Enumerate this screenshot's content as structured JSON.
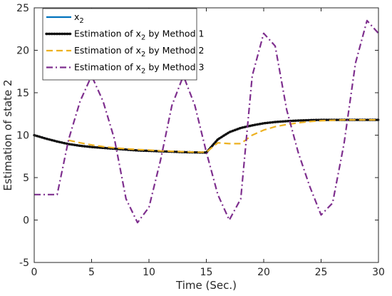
{
  "chart_data": {
    "type": "line",
    "title": "",
    "xlabel": "Time (Sec.)",
    "ylabel": "Estimation of state 2",
    "xlim": [
      0,
      30
    ],
    "ylim": [
      -5,
      25
    ],
    "xticks": [
      0,
      5,
      10,
      15,
      20,
      25,
      30
    ],
    "yticks": [
      -5,
      0,
      5,
      10,
      15,
      20,
      25
    ],
    "grid": false,
    "legend_position": "top-left",
    "series": [
      {
        "name": "x",
        "name_sub": "2",
        "color": "#0072BD",
        "style": "solid",
        "x": [
          0,
          1,
          2,
          3,
          4,
          5,
          6,
          7,
          8,
          9,
          10,
          11,
          12,
          13,
          14,
          15,
          16,
          17,
          18,
          19,
          20,
          21,
          22,
          23,
          24,
          25,
          26,
          27,
          28,
          29,
          30
        ],
        "y": [
          10.0,
          9.6,
          9.25,
          8.95,
          8.75,
          8.6,
          8.5,
          8.4,
          8.3,
          8.2,
          8.15,
          8.1,
          8.05,
          8.0,
          7.97,
          7.95,
          9.5,
          10.35,
          10.85,
          11.15,
          11.4,
          11.55,
          11.65,
          11.72,
          11.77,
          11.8,
          11.8,
          11.8,
          11.8,
          11.8,
          11.8
        ]
      },
      {
        "name": "Estimation of x",
        "name_sub": "2",
        "name_suffix": " by Method 1",
        "color": "#111111",
        "style": "dotted",
        "x": [
          0,
          1,
          2,
          3,
          4,
          5,
          6,
          7,
          8,
          9,
          10,
          11,
          12,
          13,
          14,
          15,
          16,
          17,
          18,
          19,
          20,
          21,
          22,
          23,
          24,
          25,
          26,
          27,
          28,
          29,
          30
        ],
        "y": [
          10.0,
          9.6,
          9.25,
          8.95,
          8.75,
          8.6,
          8.5,
          8.4,
          8.3,
          8.2,
          8.15,
          8.1,
          8.05,
          8.0,
          7.97,
          7.95,
          9.5,
          10.35,
          10.85,
          11.15,
          11.4,
          11.55,
          11.65,
          11.72,
          11.77,
          11.8,
          11.8,
          11.8,
          11.8,
          11.8,
          11.8
        ]
      },
      {
        "name": "Estimation of x",
        "name_sub": "2",
        "name_suffix": " by Method 2",
        "color": "#EDB120",
        "style": "dashed",
        "x": [
          3,
          4,
          5,
          6,
          7,
          8,
          9,
          10,
          11,
          12,
          13,
          14,
          15,
          16,
          17,
          18,
          19,
          20,
          21,
          22,
          23,
          24,
          25,
          26,
          27,
          28,
          29,
          30
        ],
        "y": [
          9.4,
          9.1,
          8.85,
          8.65,
          8.5,
          8.4,
          8.3,
          8.25,
          8.15,
          8.1,
          8.05,
          8.0,
          8.0,
          9.1,
          9.0,
          9.0,
          10.0,
          10.6,
          11.0,
          11.25,
          11.45,
          11.6,
          11.7,
          11.75,
          11.8,
          11.8,
          11.8,
          11.8
        ]
      },
      {
        "name": "Estimation of x",
        "name_sub": "2",
        "name_suffix": " by Method 3",
        "color": "#7E2F8E",
        "style": "dashdot",
        "x": [
          0,
          1,
          2,
          3,
          4,
          5,
          6,
          7,
          8,
          9,
          10,
          11,
          12,
          13,
          14,
          15,
          16,
          17,
          18,
          19,
          20,
          21,
          22,
          23,
          24,
          25,
          26,
          27,
          28,
          29,
          30
        ],
        "y": [
          3.0,
          3.0,
          3.0,
          9.5,
          14.0,
          17.0,
          14.0,
          9.5,
          2.5,
          -0.3,
          1.5,
          7.0,
          13.5,
          17.0,
          13.5,
          8.0,
          3.0,
          0.0,
          2.5,
          17.0,
          22.0,
          20.5,
          13.0,
          8.0,
          4.0,
          0.6,
          2.0,
          9.0,
          18.5,
          23.5,
          22.0
        ]
      }
    ]
  }
}
